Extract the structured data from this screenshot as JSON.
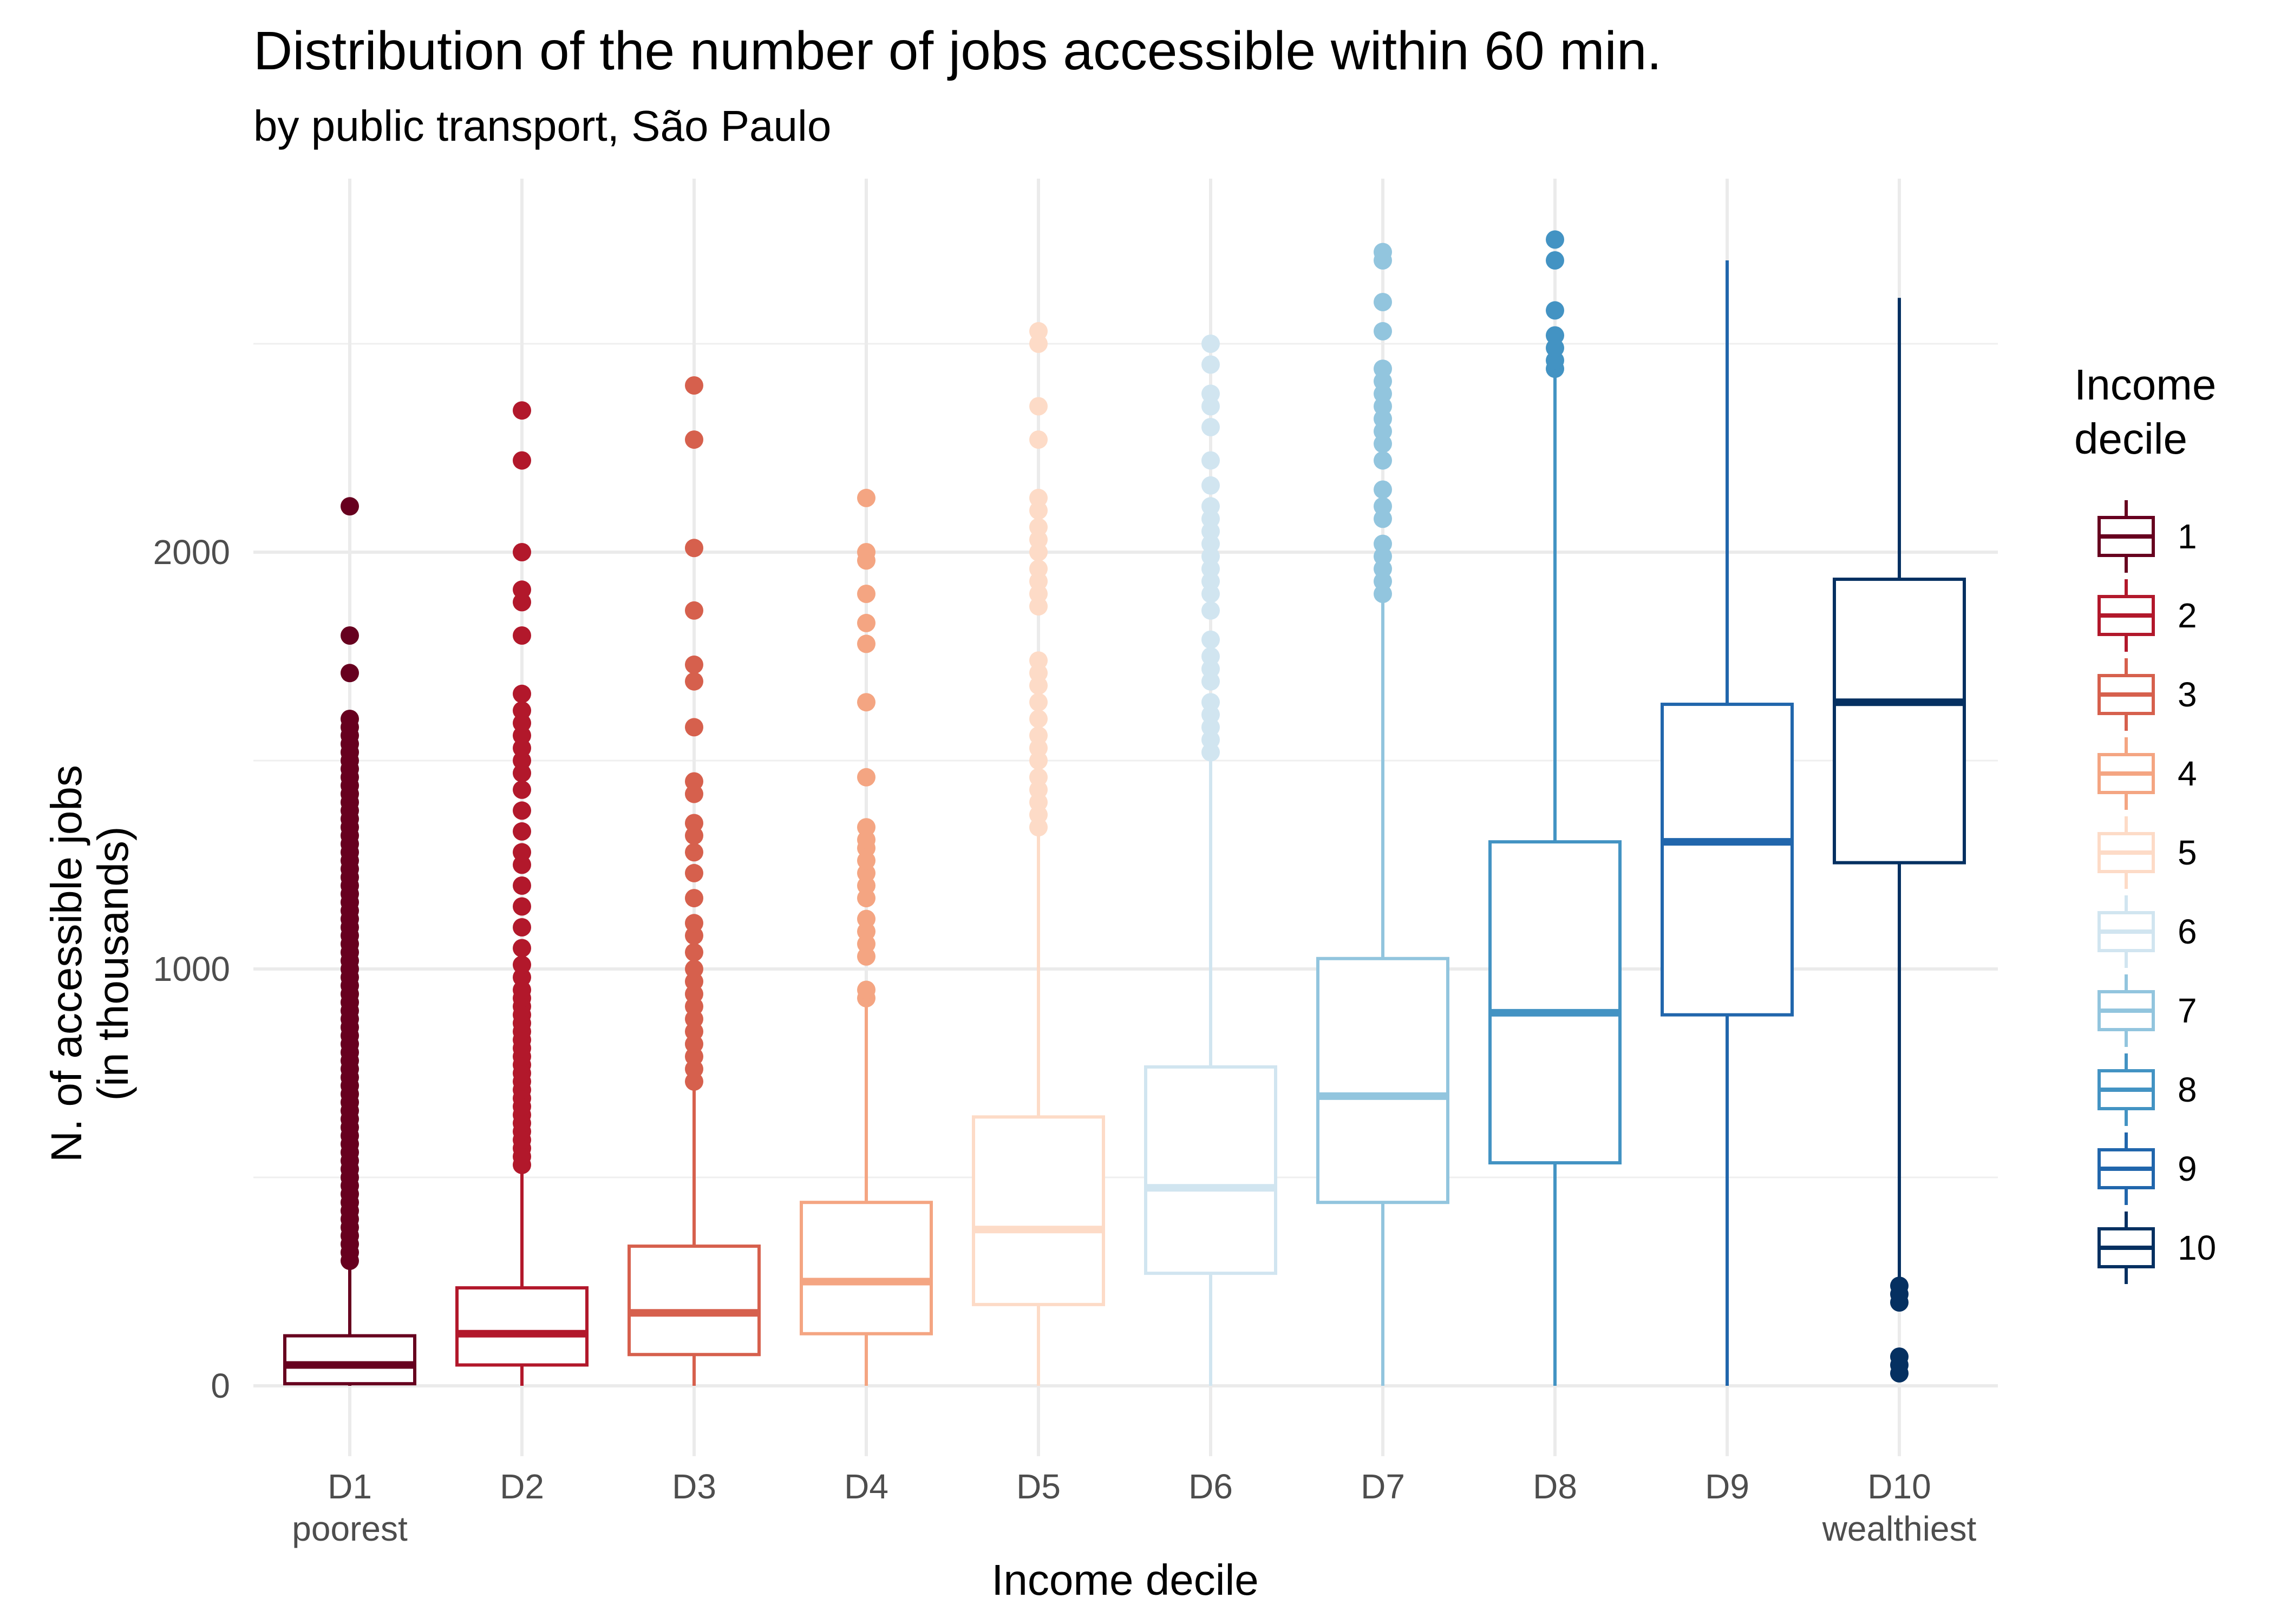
{
  "chart_data": {
    "type": "boxplot",
    "title": "Distribution of the number of jobs accessible within 60 min.",
    "subtitle": "by public transport, São Paulo",
    "xlabel": "Income decile",
    "ylabel": [
      "N. of accessible jobs",
      "(in thousands)"
    ],
    "ylim": [
      -120,
      2800
    ],
    "yticks": [
      0,
      1000,
      2000
    ],
    "grid": true,
    "legend": {
      "title": [
        "Income",
        "decile"
      ],
      "placement": "right",
      "entries": [
        "1",
        "2",
        "3",
        "4",
        "5",
        "6",
        "7",
        "8",
        "9",
        "10"
      ]
    },
    "categories": [
      {
        "label": "D1",
        "sublabel": "poorest",
        "color": "#67001f",
        "stats": {
          "lower_whisker": 0,
          "q1": 5,
          "median": 50,
          "q3": 120,
          "upper_whisker": 290
        },
        "outliers": [
          300,
          320,
          340,
          360,
          380,
          400,
          420,
          440,
          460,
          480,
          500,
          520,
          540,
          560,
          580,
          600,
          620,
          640,
          660,
          680,
          700,
          720,
          740,
          760,
          780,
          800,
          820,
          840,
          860,
          880,
          900,
          920,
          940,
          960,
          980,
          1000,
          1020,
          1040,
          1060,
          1080,
          1100,
          1120,
          1140,
          1160,
          1180,
          1200,
          1220,
          1240,
          1260,
          1280,
          1300,
          1320,
          1340,
          1360,
          1380,
          1400,
          1420,
          1440,
          1460,
          1480,
          1500,
          1520,
          1540,
          1560,
          1580,
          1600,
          1710,
          1800,
          2110
        ]
      },
      {
        "label": "D2",
        "sublabel": "",
        "color": "#b2182b",
        "stats": {
          "lower_whisker": 0,
          "q1": 50,
          "median": 125,
          "q3": 235,
          "upper_whisker": 520
        },
        "outliers": [
          530,
          550,
          570,
          590,
          610,
          630,
          650,
          670,
          690,
          710,
          730,
          750,
          770,
          790,
          810,
          830,
          850,
          870,
          890,
          910,
          930,
          950,
          980,
          1010,
          1050,
          1100,
          1150,
          1200,
          1250,
          1280,
          1330,
          1380,
          1430,
          1470,
          1500,
          1530,
          1560,
          1590,
          1620,
          1660,
          1800,
          1880,
          1910,
          2000,
          2220,
          2340
        ]
      },
      {
        "label": "D3",
        "sublabel": "",
        "color": "#d6604d",
        "stats": {
          "lower_whisker": 0,
          "q1": 75,
          "median": 175,
          "q3": 335,
          "upper_whisker": 720
        },
        "outliers": [
          730,
          760,
          790,
          820,
          850,
          880,
          910,
          940,
          970,
          1000,
          1040,
          1080,
          1110,
          1170,
          1230,
          1280,
          1320,
          1350,
          1420,
          1450,
          1580,
          1690,
          1730,
          1860,
          2010,
          2270,
          2400
        ]
      },
      {
        "label": "D4",
        "sublabel": "",
        "color": "#f4a582",
        "stats": {
          "lower_whisker": 0,
          "q1": 125,
          "median": 250,
          "q3": 440,
          "upper_whisker": 920
        },
        "outliers": [
          930,
          950,
          1030,
          1060,
          1090,
          1120,
          1170,
          1200,
          1230,
          1260,
          1290,
          1310,
          1340,
          1460,
          1640,
          1780,
          1830,
          1900,
          1980,
          2000,
          2130
        ]
      },
      {
        "label": "D5",
        "sublabel": "",
        "color": "#fddbc7",
        "stats": {
          "lower_whisker": 0,
          "q1": 195,
          "median": 375,
          "q3": 645,
          "upper_whisker": 1320
        },
        "outliers": [
          1340,
          1370,
          1400,
          1430,
          1460,
          1500,
          1530,
          1560,
          1600,
          1640,
          1680,
          1710,
          1740,
          1870,
          1900,
          1930,
          1960,
          2000,
          2030,
          2060,
          2100,
          2130,
          2270,
          2350,
          2500,
          2530
        ]
      },
      {
        "label": "D6",
        "sublabel": "",
        "color": "#d1e5f0",
        "stats": {
          "lower_whisker": 0,
          "q1": 270,
          "median": 475,
          "q3": 765,
          "upper_whisker": 1500
        },
        "outliers": [
          1520,
          1550,
          1580,
          1610,
          1640,
          1690,
          1720,
          1750,
          1790,
          1860,
          1900,
          1930,
          1960,
          1990,
          2020,
          2050,
          2080,
          2110,
          2160,
          2220,
          2300,
          2350,
          2380,
          2450,
          2500
        ]
      },
      {
        "label": "D7",
        "sublabel": "",
        "color": "#92c5de",
        "stats": {
          "lower_whisker": 0,
          "q1": 440,
          "median": 695,
          "q3": 1025,
          "upper_whisker": 1880
        },
        "outliers": [
          1900,
          1930,
          1960,
          1990,
          2020,
          2080,
          2110,
          2150,
          2220,
          2260,
          2290,
          2320,
          2350,
          2380,
          2410,
          2440,
          2530,
          2600,
          2700,
          2720
        ]
      },
      {
        "label": "D8",
        "sublabel": "",
        "color": "#4393c3",
        "stats": {
          "lower_whisker": 0,
          "q1": 535,
          "median": 895,
          "q3": 1305,
          "upper_whisker": 2420
        },
        "outliers": [
          2440,
          2460,
          2490,
          2520,
          2580,
          2700,
          2750
        ]
      },
      {
        "label": "D9",
        "sublabel": "",
        "color": "#2166ac",
        "stats": {
          "lower_whisker": 0,
          "q1": 890,
          "median": 1305,
          "q3": 1635,
          "upper_whisker": 2700
        },
        "outliers": []
      },
      {
        "label": "D10",
        "sublabel": "wealthiest",
        "color": "#053061",
        "stats": {
          "lower_whisker": 250,
          "q1": 1255,
          "median": 1640,
          "q3": 1935,
          "upper_whisker": 2610
        },
        "outliers": [
          30,
          50,
          70,
          200,
          220,
          240
        ]
      }
    ]
  }
}
